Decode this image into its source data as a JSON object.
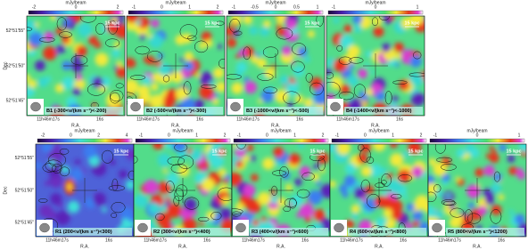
{
  "axis_labels": {
    "y": "Dec",
    "x": "R.A."
  },
  "dec_ticks": [
    "52°51'55\"",
    "52°51'50\"",
    "52°51'45\""
  ],
  "ra_ticks": [
    "11h46m17s",
    "16s"
  ],
  "panels": [
    {
      "label": "B1 (-300<v/(km s⁻¹)<-200)",
      "unit": "mJy/beam",
      "colorbar_ticks": [
        "-2",
        "0",
        "2"
      ],
      "scale": "15 kpc"
    },
    {
      "label": "B2 (-500<v/(km s⁻¹)<-300)",
      "unit": "mJy/beam",
      "colorbar_ticks": [
        "-1",
        "0",
        "1",
        "2"
      ],
      "scale": "15 kpc"
    },
    {
      "label": "B3 (-1000<v/(km s⁻¹)<-500)",
      "unit": "mJy/beam",
      "colorbar_ticks": [
        "-1",
        "-0.5",
        "0",
        "0.5",
        "1"
      ],
      "scale": "15 kpc"
    },
    {
      "label": "B4 (-1400<v/(km s⁻¹)<-1000)",
      "unit": "mJy/beam",
      "colorbar_ticks": [
        "-1",
        "0",
        "1"
      ],
      "scale": "15 kpc"
    },
    {
      "label": "R1 (200<v/(km s⁻¹)<300)",
      "unit": "mJy/beam",
      "colorbar_ticks": [
        "-2",
        "0",
        "2",
        "4"
      ],
      "scale": "15 kpc"
    },
    {
      "label": "R2 (300<v/(km s⁻¹)<400)",
      "unit": "mJy/beam",
      "colorbar_ticks": [
        "-1",
        "0",
        "1",
        "2"
      ],
      "scale": "15 kpc"
    },
    {
      "label": "R3 (400<v/(km s⁻¹)<600)",
      "unit": "mJy/beam",
      "colorbar_ticks": [
        "-1",
        "0",
        "1",
        "2"
      ],
      "scale": "15 kpc"
    },
    {
      "label": "R4 (600<v/(km s⁻¹)<800)",
      "unit": "mJy/beam",
      "colorbar_ticks": [
        "-1",
        "0",
        "1",
        "2"
      ],
      "scale": "15 kpc"
    },
    {
      "label": "R5 (800<v/(km s⁻¹)<1200)",
      "unit": "mJy/beam",
      "colorbar_ticks": [
        "-1",
        "0",
        "1"
      ],
      "scale": "15 kpc"
    }
  ]
}
